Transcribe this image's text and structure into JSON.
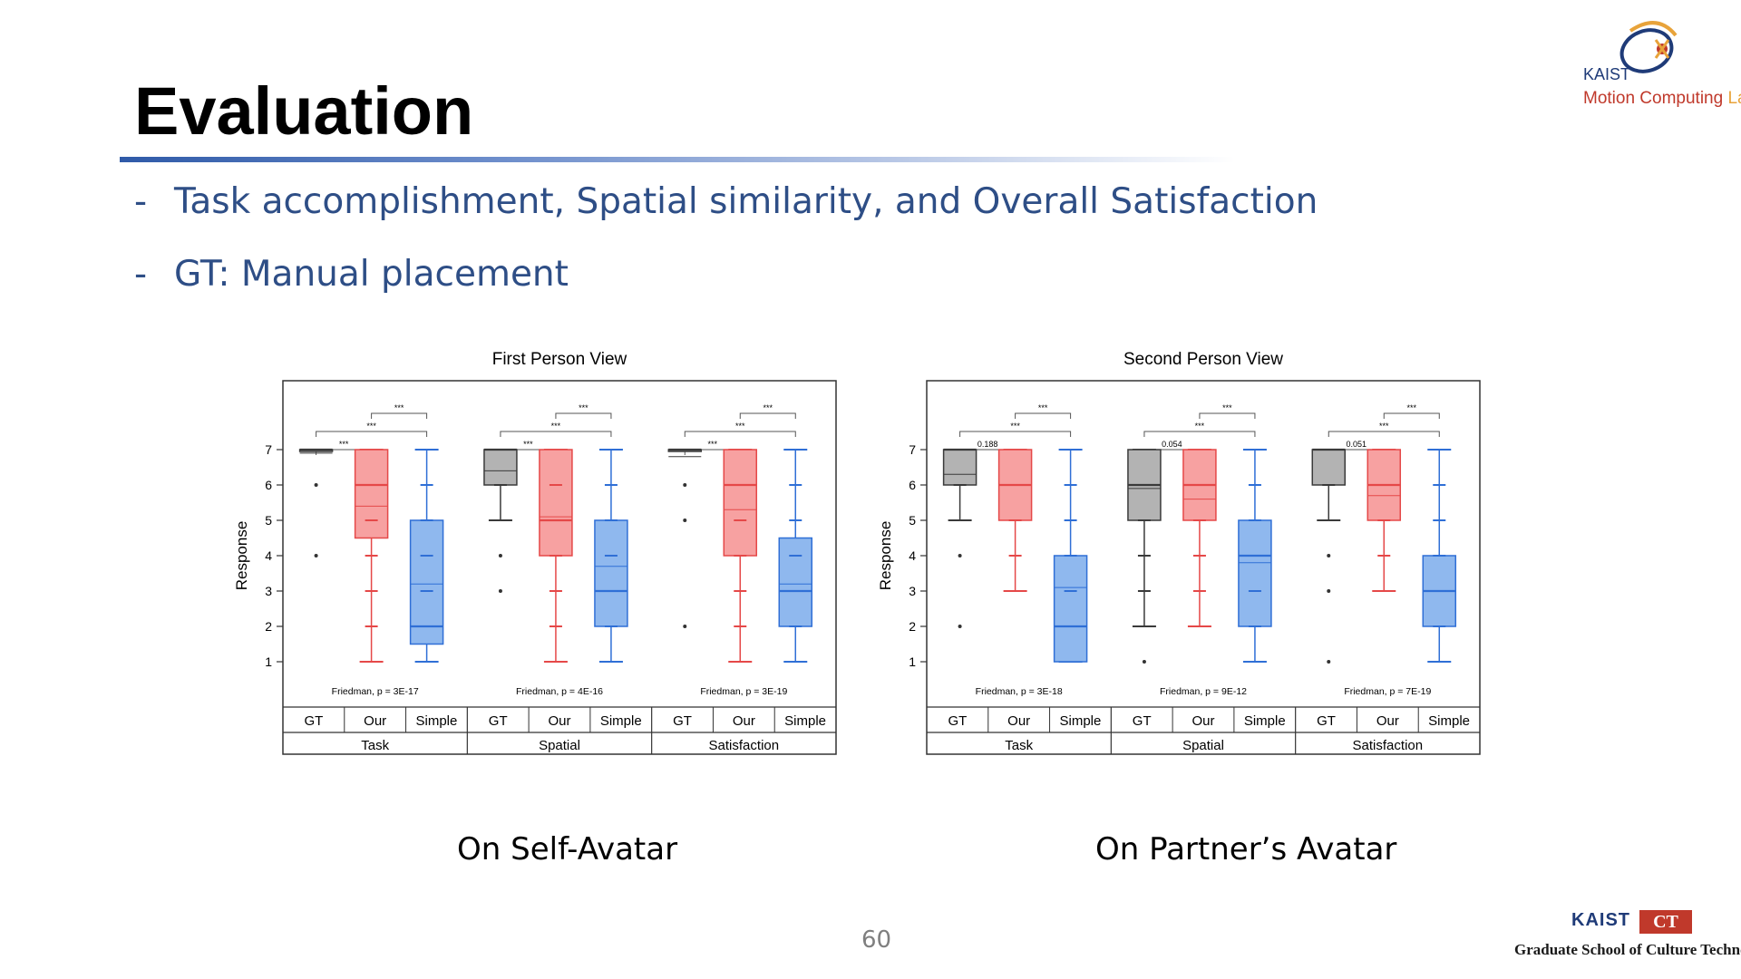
{
  "slide": {
    "title": "Evaluation",
    "bullets": [
      {
        "dash": "-",
        "text": "Task accomplishment, Spatial similarity, and Overall Satisfaction"
      },
      {
        "dash": "-",
        "text": "GT: Manual placement"
      }
    ],
    "captions": [
      "On Self-Avatar",
      "On Partner’s Avatar"
    ],
    "page_number": "60",
    "logo_top": {
      "line1": "KAIST",
      "line2a": "Motion Computing ",
      "line2b": "Lab"
    },
    "logo_bottom": {
      "kaist": "KAIST",
      "ct": "CT",
      "text": "Graduate School of Culture Technology"
    }
  },
  "colors": {
    "gt": "#b3b3b3",
    "our": "#f7a1a1",
    "simple": "#8fb8ee",
    "gt_stroke": "#3a3a3a",
    "our_stroke": "#e54848",
    "simple_stroke": "#2f6fd6",
    "accent": "#2e4e86"
  },
  "chart_data": [
    {
      "type": "box",
      "title": "First Person View",
      "ylabel": "Response",
      "ylim": [
        1,
        7
      ],
      "yticks": [
        "1",
        "2",
        "3",
        "4",
        "5",
        "6",
        "7"
      ],
      "conditions": [
        "GT",
        "Our",
        "Simple"
      ],
      "groups": [
        {
          "name": "Task",
          "stat": "Friedman, p = 3E-17",
          "sig": [
            "***",
            "***",
            "***"
          ],
          "boxes": [
            {
              "cond": "GT",
              "q1": 7,
              "median": 7,
              "mean": 6.9,
              "q3": 7,
              "whisker_low": 7,
              "whisker_high": 7,
              "outliers": [
                6,
                4
              ]
            },
            {
              "cond": "Our",
              "q1": 4.5,
              "median": 6,
              "mean": 5.4,
              "q3": 7,
              "whisker_low": 1,
              "whisker_high": 7,
              "outliers": []
            },
            {
              "cond": "Simple",
              "q1": 1.5,
              "median": 2,
              "mean": 3.2,
              "q3": 5,
              "whisker_low": 1,
              "whisker_high": 7,
              "outliers": []
            }
          ]
        },
        {
          "name": "Spatial",
          "stat": "Friedman, p = 4E-16",
          "sig": [
            "***",
            "***",
            "***"
          ],
          "boxes": [
            {
              "cond": "GT",
              "q1": 6,
              "median": 7,
              "mean": 6.4,
              "q3": 7,
              "whisker_low": 5,
              "whisker_high": 7,
              "outliers": [
                4,
                3
              ]
            },
            {
              "cond": "Our",
              "q1": 4,
              "median": 5,
              "mean": 5.1,
              "q3": 7,
              "whisker_low": 1,
              "whisker_high": 7,
              "outliers": []
            },
            {
              "cond": "Simple",
              "q1": 2,
              "median": 3,
              "mean": 3.7,
              "q3": 5,
              "whisker_low": 1,
              "whisker_high": 7,
              "outliers": []
            }
          ]
        },
        {
          "name": "Satisfaction",
          "stat": "Friedman, p = 3E-19",
          "sig": [
            "***",
            "***",
            "***"
          ],
          "boxes": [
            {
              "cond": "GT",
              "q1": 7,
              "median": 7,
              "mean": 6.8,
              "q3": 7,
              "whisker_low": 7,
              "whisker_high": 7,
              "outliers": [
                6,
                5,
                2
              ]
            },
            {
              "cond": "Our",
              "q1": 4,
              "median": 6,
              "mean": 5.3,
              "q3": 7,
              "whisker_low": 1,
              "whisker_high": 7,
              "outliers": []
            },
            {
              "cond": "Simple",
              "q1": 2,
              "median": 3,
              "mean": 3.2,
              "q3": 4.5,
              "whisker_low": 1,
              "whisker_high": 7,
              "outliers": []
            }
          ]
        }
      ]
    },
    {
      "type": "box",
      "title": "Second Person View",
      "ylabel": "Response",
      "ylim": [
        1,
        7
      ],
      "yticks": [
        "1",
        "2",
        "3",
        "4",
        "5",
        "6",
        "7"
      ],
      "conditions": [
        "GT",
        "Our",
        "Simple"
      ],
      "groups": [
        {
          "name": "Task",
          "stat": "Friedman, p = 3E-18",
          "sig": [
            "0.188",
            "***",
            "***"
          ],
          "boxes": [
            {
              "cond": "GT",
              "q1": 6,
              "median": 7,
              "mean": 6.3,
              "q3": 7,
              "whisker_low": 5,
              "whisker_high": 7,
              "outliers": [
                4,
                2
              ]
            },
            {
              "cond": "Our",
              "q1": 5,
              "median": 6,
              "mean": 6,
              "q3": 7,
              "whisker_low": 3,
              "whisker_high": 7,
              "outliers": []
            },
            {
              "cond": "Simple",
              "q1": 1,
              "median": 2,
              "mean": 3.1,
              "q3": 4,
              "whisker_low": 1,
              "whisker_high": 7,
              "outliers": []
            }
          ]
        },
        {
          "name": "Spatial",
          "stat": "Friedman, p = 9E-12",
          "sig": [
            "0.054",
            "***",
            "***"
          ],
          "boxes": [
            {
              "cond": "GT",
              "q1": 5,
              "median": 6,
              "mean": 5.9,
              "q3": 7,
              "whisker_low": 2,
              "whisker_high": 7,
              "outliers": [
                1
              ]
            },
            {
              "cond": "Our",
              "q1": 5,
              "median": 6,
              "mean": 5.6,
              "q3": 7,
              "whisker_low": 2,
              "whisker_high": 7,
              "outliers": []
            },
            {
              "cond": "Simple",
              "q1": 2,
              "median": 4,
              "mean": 3.8,
              "q3": 5,
              "whisker_low": 1,
              "whisker_high": 7,
              "outliers": []
            }
          ]
        },
        {
          "name": "Satisfaction",
          "stat": "Friedman, p = 7E-19",
          "sig": [
            "0.051",
            "***",
            "***"
          ],
          "boxes": [
            {
              "cond": "GT",
              "q1": 6,
              "median": 7,
              "mean": 6,
              "q3": 7,
              "whisker_low": 5,
              "whisker_high": 7,
              "outliers": [
                4,
                3,
                1
              ]
            },
            {
              "cond": "Our",
              "q1": 5,
              "median": 6,
              "mean": 5.7,
              "q3": 7,
              "whisker_low": 3,
              "whisker_high": 7,
              "outliers": []
            },
            {
              "cond": "Simple",
              "q1": 2,
              "median": 3,
              "mean": 3,
              "q3": 4,
              "whisker_low": 1,
              "whisker_high": 7,
              "outliers": []
            }
          ]
        }
      ]
    }
  ]
}
